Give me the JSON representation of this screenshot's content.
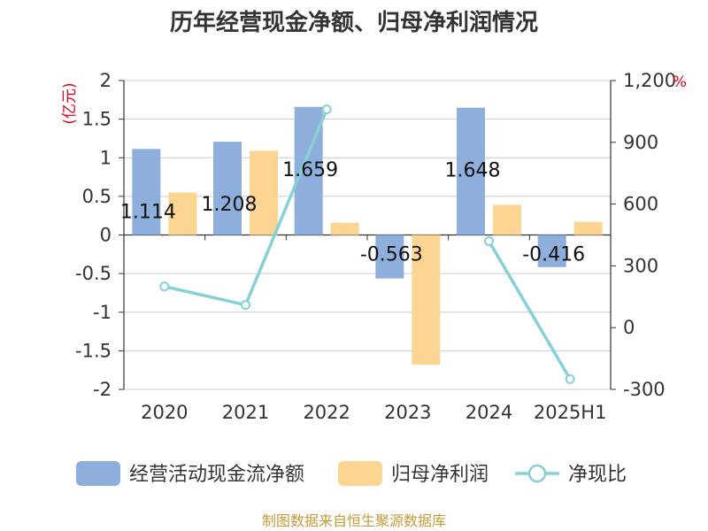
{
  "chart_data": {
    "type": "bar",
    "title": "历年经营现金净额、归母净利润情况",
    "categories": [
      "2020",
      "2021",
      "2022",
      "2023",
      "2024",
      "2025H1"
    ],
    "y_left": {
      "unit": "(亿元)",
      "ylim": [
        -2,
        2
      ],
      "ticks": [
        "2",
        "1.5",
        "1",
        "0.5",
        "0",
        "-0.5",
        "-1",
        "-1.5",
        "-2"
      ]
    },
    "y_right": {
      "unit": "%",
      "ylim": [
        -300,
        1200
      ],
      "ticks": [
        "1,200",
        "900",
        "600",
        "300",
        "0",
        "-300"
      ]
    },
    "series": [
      {
        "name": "经营活动现金流净额",
        "type": "bar",
        "axis": "left",
        "color": "#8eaedc",
        "values": [
          1.114,
          1.208,
          1.659,
          -0.563,
          1.648,
          -0.416
        ],
        "labels": [
          "1.114",
          "1.208",
          "1.659",
          "-0.563",
          "1.648",
          "-0.416"
        ]
      },
      {
        "name": "归母净利润",
        "type": "bar",
        "axis": "left",
        "color": "#fdd592",
        "values": [
          0.55,
          1.09,
          0.16,
          -1.68,
          0.39,
          0.17
        ]
      },
      {
        "name": "净现比",
        "type": "line",
        "axis": "right",
        "color": "#86d0d8",
        "values": [
          200,
          110,
          1060,
          null,
          420,
          -250
        ]
      }
    ],
    "grid": true,
    "legend_position": "bottom"
  },
  "source": "制图数据来自恒生聚源数据库"
}
